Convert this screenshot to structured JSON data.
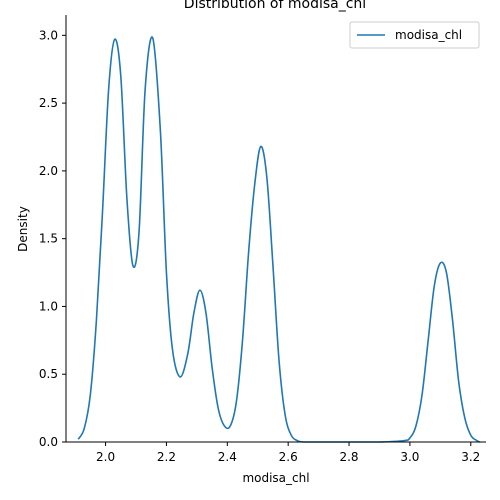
{
  "chart_data": {
    "type": "line",
    "title": "Distribution of modisa_chl",
    "xlabel": "modisa_chl",
    "ylabel": "Density",
    "xlim": [
      1.87,
      3.25
    ],
    "ylim": [
      0.0,
      3.15
    ],
    "grid": false,
    "legend_position": "top-right",
    "xticks": [
      2.0,
      2.2,
      2.4,
      2.6,
      2.8,
      3.0,
      3.2
    ],
    "xtick_labels": [
      "2.0",
      "2.2",
      "2.4",
      "2.6",
      "2.8",
      "3.0",
      "3.2"
    ],
    "yticks": [
      0.0,
      0.5,
      1.0,
      1.5,
      2.0,
      2.5,
      3.0
    ],
    "ytick_labels": [
      "0.0",
      "0.5",
      "1.0",
      "1.5",
      "2.0",
      "2.5",
      "3.0"
    ],
    "series": [
      {
        "name": "modisa_chl",
        "color": "#1f77b4",
        "x": [
          1.91,
          1.93,
          1.95,
          1.97,
          1.99,
          2.01,
          2.03,
          2.05,
          2.07,
          2.09,
          2.11,
          2.13,
          2.155,
          2.18,
          2.2,
          2.22,
          2.245,
          2.27,
          2.29,
          2.31,
          2.33,
          2.35,
          2.37,
          2.39,
          2.41,
          2.43,
          2.45,
          2.47,
          2.49,
          2.51,
          2.53,
          2.55,
          2.57,
          2.59,
          2.61,
          2.63,
          2.65,
          2.7,
          2.8,
          2.9,
          2.98,
          3.0,
          3.02,
          3.04,
          3.06,
          3.08,
          3.1,
          3.12,
          3.14,
          3.16,
          3.18,
          3.2,
          3.22,
          3.23
        ],
        "y": [
          0.02,
          0.1,
          0.35,
          0.9,
          1.7,
          2.6,
          2.97,
          2.7,
          1.8,
          1.3,
          1.55,
          2.6,
          2.98,
          2.3,
          1.25,
          0.68,
          0.48,
          0.65,
          0.95,
          1.12,
          0.95,
          0.55,
          0.25,
          0.12,
          0.12,
          0.3,
          0.75,
          1.4,
          1.9,
          2.18,
          1.95,
          1.3,
          0.6,
          0.2,
          0.05,
          0.01,
          0.0,
          0.0,
          0.0,
          0.0,
          0.01,
          0.03,
          0.12,
          0.35,
          0.75,
          1.15,
          1.32,
          1.25,
          0.9,
          0.45,
          0.18,
          0.05,
          0.01,
          0.0
        ]
      }
    ]
  }
}
